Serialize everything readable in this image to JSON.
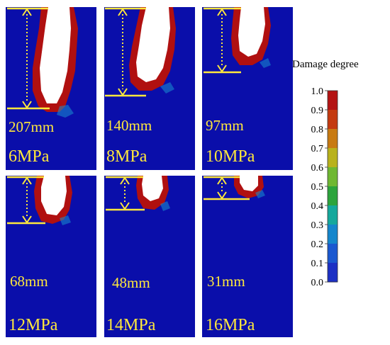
{
  "colorbar": {
    "title": "Damage degree",
    "ticks": [
      "1.0",
      "0.9",
      "0.8",
      "0.7",
      "0.6",
      "0.5",
      "0.4",
      "0.3",
      "0.2",
      "0.1",
      "0.0"
    ],
    "colors": [
      "#b41414",
      "#c43a10",
      "#c87a12",
      "#b9b21c",
      "#6fb832",
      "#2ca43c",
      "#14a89c",
      "#1486cc",
      "#1a58d0",
      "#1c30c4"
    ]
  },
  "colors": {
    "background": "#0a0eaa",
    "damaged": "#b01010",
    "crater": "#ffffff",
    "annotation": "#ffe83c"
  },
  "panels": [
    {
      "depth_label": "207mm",
      "pressure_label": "6MPa",
      "depth_mm": 207
    },
    {
      "depth_label": "140mm",
      "pressure_label": "8MPa",
      "depth_mm": 140
    },
    {
      "depth_label": "97mm",
      "pressure_label": "10MPa",
      "depth_mm": 97
    },
    {
      "depth_label": "68mm",
      "pressure_label": "12MPa",
      "depth_mm": 68
    },
    {
      "depth_label": "48mm",
      "pressure_label": "14MPa",
      "depth_mm": 48
    },
    {
      "depth_label": "31mm",
      "pressure_label": "16MPa",
      "depth_mm": 31
    }
  ]
}
